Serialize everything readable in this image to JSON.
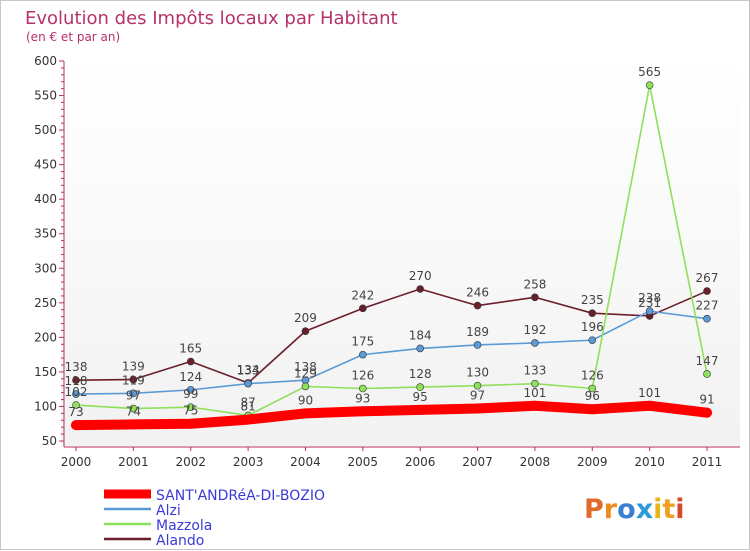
{
  "chart_data": {
    "type": "line",
    "title": "Evolution des Impôts locaux par Habitant",
    "subtitle": "(en € et par an)",
    "x": [
      "2000",
      "2001",
      "2002",
      "2003",
      "2004",
      "2005",
      "2006",
      "2007",
      "2008",
      "2009",
      "2010",
      "2011"
    ],
    "ylim": [
      50,
      600
    ],
    "yticks": [
      50,
      100,
      150,
      200,
      250,
      300,
      350,
      400,
      450,
      500,
      550,
      600
    ],
    "grid": false,
    "legend_position": "bottom-left",
    "series": [
      {
        "name": "SANT'ANDRéA-DI-BOZIO",
        "color": "#ff0000",
        "values": [
          73,
          74,
          75,
          81,
          90,
          93,
          95,
          97,
          101,
          96,
          101,
          91
        ]
      },
      {
        "name": "Alzi",
        "color": "#5b9bd5",
        "values": [
          118,
          119,
          124,
          133,
          138,
          175,
          184,
          189,
          192,
          196,
          238,
          227
        ]
      },
      {
        "name": "Mazzola",
        "color": "#8fe05a",
        "values": [
          102,
          97,
          99,
          87,
          129,
          126,
          128,
          130,
          133,
          126,
          565,
          147
        ]
      },
      {
        "name": "Alando",
        "color": "#6b1f2a",
        "values": [
          138,
          139,
          165,
          134,
          209,
          242,
          270,
          246,
          258,
          235,
          231,
          267
        ]
      }
    ]
  },
  "branding": {
    "logo_text": "Proxiti"
  }
}
